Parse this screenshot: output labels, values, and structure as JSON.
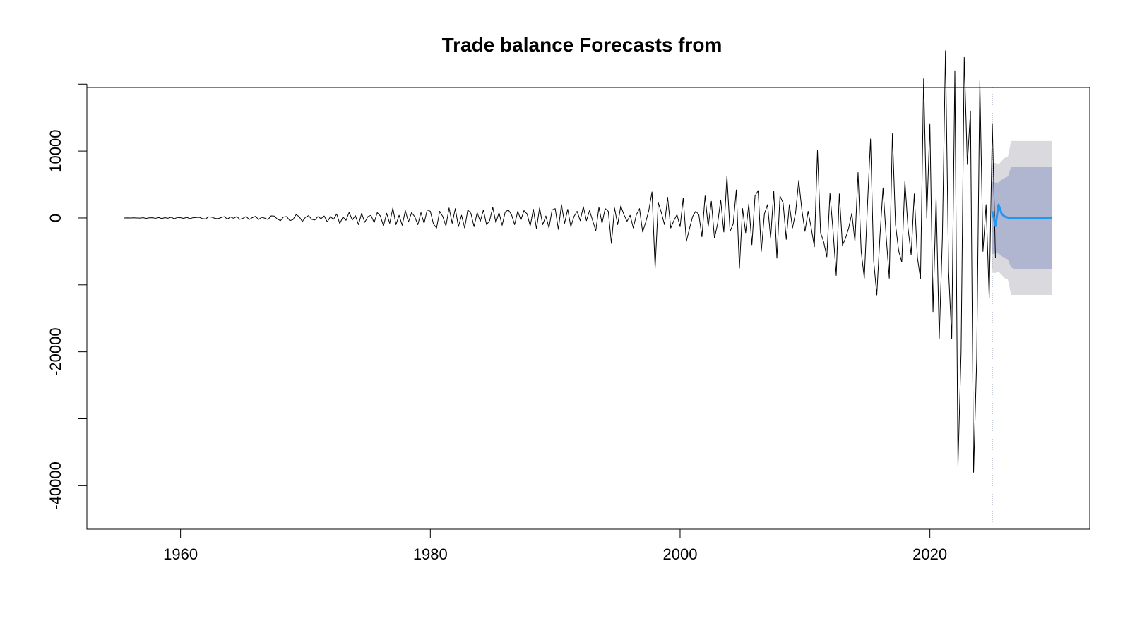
{
  "chart_data": {
    "type": "line",
    "title": "Trade balance Forecasts from",
    "xlabel": "",
    "ylabel": "",
    "xlim": [
      1952.5,
      2032.8
    ],
    "ylim": [
      -46500,
      19500
    ],
    "x_ticks": [
      1960,
      1980,
      2000,
      2020
    ],
    "x_tick_labels": [
      "1960",
      "1980",
      "2000",
      "2020"
    ],
    "y_ticks": [
      -40000,
      -20000,
      0,
      10000
    ],
    "y_tick_labels": [
      "-40000",
      "-20000",
      "0",
      "10000"
    ],
    "y_minor_ticks": [
      -30000,
      -10000,
      20000
    ],
    "grid": false,
    "legend": "none",
    "series": [
      {
        "values_start_x": 1955.5,
        "values_step": 0.25,
        "color": "#000000",
        "values": [
          0,
          10,
          -10,
          20,
          0,
          -20,
          30,
          -60,
          20,
          40,
          -50,
          60,
          -80,
          50,
          -40,
          100,
          -120,
          80,
          30,
          -60,
          90,
          -100,
          40,
          70,
          100,
          -90,
          -140,
          170,
          120,
          -60,
          -110,
          60,
          200,
          -160,
          150,
          -50,
          210,
          -200,
          -50,
          230,
          -230,
          50,
          240,
          -220,
          100,
          -30,
          -240,
          310,
          290,
          -160,
          -400,
          160,
          210,
          -400,
          -250,
          500,
          200,
          -520,
          100,
          350,
          -200,
          -300,
          200,
          -100,
          300,
          -580,
          200,
          -200,
          600,
          -850,
          150,
          -350,
          850,
          -300,
          350,
          -1000,
          700,
          -650,
          200,
          400,
          -700,
          800,
          300,
          -1200,
          700,
          -800,
          1500,
          -1000,
          400,
          -1100,
          1100,
          -600,
          800,
          200,
          -1000,
          800,
          -800,
          1200,
          1000,
          -900,
          -1500,
          1000,
          200,
          -1200,
          1500,
          -800,
          1400,
          -1300,
          400,
          -1500,
          1200,
          700,
          -1300,
          800,
          -500,
          1200,
          -1000,
          -400,
          1600,
          -700,
          800,
          -1100,
          900,
          1200,
          500,
          -1000,
          1000,
          -300,
          1100,
          600,
          -1200,
          1300,
          -1600,
          1500,
          -1000,
          300,
          -1500,
          1200,
          1400,
          -1700,
          2000,
          -800,
          1300,
          -1300,
          200,
          1000,
          -400,
          1700,
          -400,
          1100,
          -400,
          -1900,
          1600,
          -800,
          1400,
          1000,
          -3800,
          1500,
          -1000,
          1800,
          500,
          -500,
          400,
          -1500,
          500,
          1400,
          -2100,
          -600,
          1200,
          3900,
          -7500,
          2300,
          800,
          -1000,
          3100,
          -1500,
          -400,
          500,
          -1300,
          3000,
          -3500,
          -1600,
          200,
          1000,
          500,
          -2800,
          3300,
          -1300,
          2500,
          -3000,
          -900,
          2700,
          -2100,
          6300,
          -2000,
          -900,
          4200,
          -7500,
          1400,
          -2200,
          2100,
          -4000,
          3300,
          4100,
          -5000,
          600,
          2000,
          -3000,
          4000,
          -6000,
          3300,
          2200,
          -3200,
          2000,
          -1500,
          800,
          5600,
          1200,
          -2000,
          1000,
          -1500,
          -4300,
          10100,
          -2200,
          -3600,
          -5800,
          3700,
          -2000,
          -8600,
          3600,
          -4100,
          -3000,
          -1500,
          700,
          -3500,
          6800,
          -5000,
          -9000,
          1800,
          11800,
          -6400,
          -11500,
          -2800,
          4500,
          -2800,
          -9000,
          12600,
          -1000,
          -4900,
          -6600,
          5500,
          -1500,
          -5500,
          3600,
          -5900,
          -9100,
          20800,
          0,
          14000,
          -14000,
          3000,
          -18000,
          -3000,
          25000,
          -8000,
          -18000,
          22000,
          -37000,
          -20000,
          24000,
          8000,
          16000,
          -38000,
          -21000,
          20500,
          -5000,
          2000,
          -12000,
          14000,
          -6000
        ]
      },
      {
        "name": "forecast",
        "values_start_x": 2025.0,
        "values_step": 0.25,
        "color": "#2196f3",
        "values": [
          1000,
          -1200,
          2000,
          600,
          200,
          50,
          0,
          0,
          0,
          0,
          0,
          0,
          0,
          0,
          0,
          0,
          0,
          0,
          0,
          0
        ]
      }
    ],
    "intervals": {
      "x_start": 2025.0,
      "x_step": 0.25,
      "lo80": [
        -5400,
        -5300,
        -5300,
        -5700,
        -6000,
        -6200,
        -7400,
        -7600,
        -7600,
        -7600,
        -7600,
        -7600,
        -7600,
        -7600,
        -7600,
        -7600,
        -7600,
        -7600,
        -7600,
        -7600
      ],
      "hi80": [
        5400,
        5300,
        5300,
        5700,
        6000,
        6200,
        7600,
        7600,
        7600,
        7600,
        7600,
        7600,
        7600,
        7600,
        7600,
        7600,
        7600,
        7600,
        7600,
        7600
      ],
      "lo95": [
        -8200,
        -8200,
        -8000,
        -8500,
        -9000,
        -9200,
        -11500,
        -11500,
        -11500,
        -11500,
        -11500,
        -11500,
        -11500,
        -11500,
        -11500,
        -11500,
        -11500,
        -11500,
        -11500,
        -11500
      ],
      "hi95": [
        8200,
        8200,
        8000,
        8500,
        9000,
        9200,
        11500,
        11500,
        11500,
        11500,
        11500,
        11500,
        11500,
        11500,
        11500,
        11500,
        11500,
        11500,
        11500,
        11500
      ],
      "color80": "#b0b5d0",
      "color95": "#d9d9de"
    },
    "forecast_origin_x": 2025.0,
    "forecast_origin_style": "dotted",
    "axis_color": "#000000"
  }
}
